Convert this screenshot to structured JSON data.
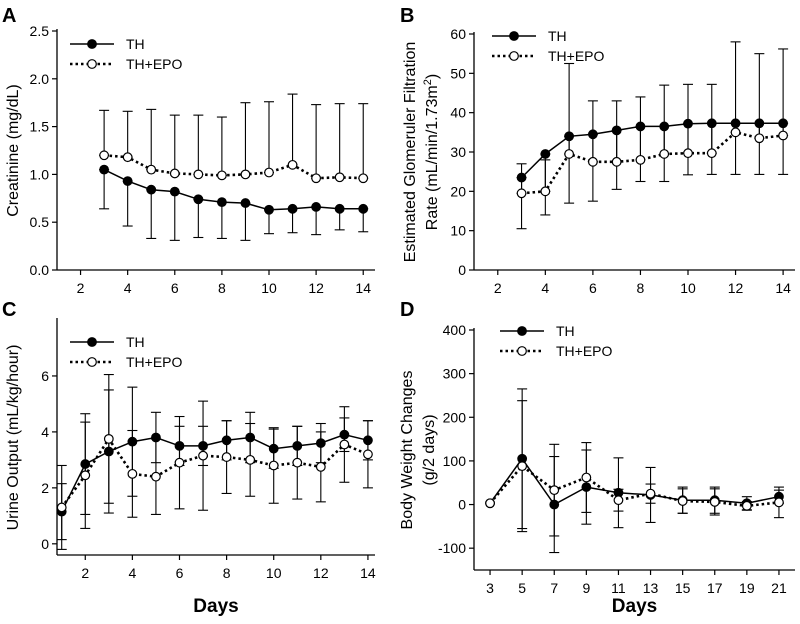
{
  "colors": {
    "ink": "#000000",
    "paper": "#ffffff"
  },
  "chart_data": [
    {
      "panel": "A",
      "type": "line",
      "title": "",
      "xlabel": "",
      "ylabel": "Creatinine (mg/dL)",
      "xlim": [
        1,
        14.5
      ],
      "ylim": [
        0,
        2.5
      ],
      "xticks": [
        "2",
        "4",
        "6",
        "8",
        "10",
        "12",
        "14"
      ],
      "yticks": [
        "0.0",
        "0.5",
        "1.0",
        "1.5",
        "2.0",
        "2.5"
      ],
      "legend_position": "top-left",
      "series": [
        {
          "name": "TH",
          "marker": "filled",
          "line": "solid",
          "x": [
            3,
            4,
            5,
            6,
            7,
            8,
            9,
            10,
            11,
            12,
            13,
            14
          ],
          "y": [
            1.05,
            0.93,
            0.84,
            0.82,
            0.74,
            0.71,
            0.7,
            0.63,
            0.64,
            0.66,
            0.64,
            0.64
          ],
          "err": [
            0.41,
            0.47,
            0.51,
            0.51,
            0.4,
            0.38,
            0.39,
            0.25,
            0.25,
            0.29,
            0.22,
            0.24
          ]
        },
        {
          "name": "TH+EPO",
          "marker": "open",
          "line": "dotted",
          "x": [
            3,
            4,
            5,
            6,
            7,
            8,
            9,
            10,
            11,
            12,
            13,
            14
          ],
          "y": [
            1.2,
            1.18,
            1.05,
            1.01,
            1.0,
            0.99,
            1.0,
            1.02,
            1.1,
            0.96,
            0.97,
            0.96
          ],
          "err": [
            0.47,
            0.48,
            0.63,
            0.61,
            0.62,
            0.61,
            0.75,
            0.74,
            0.74,
            0.77,
            0.77,
            0.78
          ]
        }
      ]
    },
    {
      "panel": "B",
      "type": "line",
      "title": "",
      "xlabel": "",
      "ylabel": "Estimated Glomeruler Filtration",
      "ylabel2": "Rate (mL/min/1.73m",
      "ylabel2_sup": "2",
      "ylabel2_end": ")",
      "xlim": [
        1,
        14.5
      ],
      "ylim": [
        0,
        60
      ],
      "xticks": [
        "2",
        "4",
        "6",
        "8",
        "10",
        "12",
        "14"
      ],
      "yticks": [
        "0",
        "10",
        "20",
        "30",
        "40",
        "50",
        "60"
      ],
      "legend_position": "top-left",
      "series": [
        {
          "name": "TH",
          "marker": "filled",
          "line": "solid",
          "x": [
            3,
            4,
            5,
            6,
            7,
            8,
            9,
            10,
            11,
            12,
            13,
            14
          ],
          "y": [
            23.5,
            29.5,
            34.0,
            34.5,
            35.5,
            36.5,
            36.5,
            37.2,
            37.3,
            37.3,
            37.3,
            37.3
          ],
          "err": [
            13,
            15.5,
            17,
            17,
            15,
            14,
            14,
            13,
            13,
            13,
            13,
            13
          ]
        },
        {
          "name": "TH+EPO",
          "marker": "open",
          "line": "dotted",
          "x": [
            3,
            4,
            5,
            6,
            7,
            8,
            9,
            10,
            11,
            12,
            13,
            14
          ],
          "y": [
            19.5,
            20.0,
            29.5,
            27.5,
            27.5,
            28.0,
            29.5,
            29.7,
            29.7,
            35.0,
            33.5,
            34.2
          ],
          "err": [
            7.5,
            8,
            23,
            15.5,
            15.5,
            16,
            17.5,
            17.5,
            17.5,
            23,
            21.5,
            22
          ]
        }
      ]
    },
    {
      "panel": "C",
      "type": "line",
      "title": "",
      "xlabel": "Days",
      "ylabel": "Urine Output (mL/kg/hour)",
      "xlim": [
        0.8,
        14.3
      ],
      "ylim": [
        -0.4,
        8
      ],
      "xticks": [
        "2",
        "4",
        "6",
        "8",
        "10",
        "12",
        "14"
      ],
      "yticks": [
        "0",
        "2",
        "4",
        "6"
      ],
      "legend_position": "top-left",
      "series": [
        {
          "name": "TH",
          "marker": "filled",
          "line": "solid",
          "x": [
            1,
            2,
            3,
            4,
            5,
            6,
            7,
            8,
            9,
            10,
            11,
            12,
            13,
            14
          ],
          "y": [
            1.15,
            2.85,
            3.3,
            3.65,
            3.8,
            3.5,
            3.5,
            3.7,
            3.8,
            3.4,
            3.5,
            3.6,
            3.9,
            3.7
          ],
          "err": [
            1.0,
            1.8,
            2.2,
            1.95,
            0.9,
            0.7,
            0.7,
            0.7,
            0.9,
            0.7,
            0.7,
            0.7,
            0.6,
            0.7
          ]
        },
        {
          "name": "TH+EPO",
          "marker": "open",
          "line": "dotted",
          "x": [
            1,
            2,
            3,
            4,
            5,
            6,
            7,
            8,
            9,
            10,
            11,
            12,
            13,
            14
          ],
          "y": [
            1.3,
            2.45,
            3.75,
            2.5,
            2.4,
            2.9,
            3.15,
            3.1,
            3.0,
            2.8,
            2.9,
            2.75,
            3.55,
            3.2
          ],
          "err": [
            1.5,
            1.9,
            2.3,
            1.55,
            1.35,
            1.65,
            1.95,
            1.3,
            1.3,
            1.35,
            1.3,
            1.25,
            1.35,
            1.2
          ]
        }
      ]
    },
    {
      "panel": "D",
      "type": "line",
      "title": "",
      "xlabel": "Days",
      "ylabel": "Body Weight Changes",
      "ylabel2": "(g/2 days)",
      "xlim": [
        2,
        22
      ],
      "ylim": [
        -150,
        400
      ],
      "xticks": [
        "3",
        "5",
        "7",
        "9",
        "11",
        "13",
        "15",
        "17",
        "19",
        "21"
      ],
      "yticks": [
        "-100",
        "0",
        "100",
        "200",
        "300",
        "400"
      ],
      "legend_position": "top-left",
      "series": [
        {
          "name": "TH",
          "marker": "filled",
          "line": "solid",
          "x": [
            3,
            5,
            7,
            9,
            11,
            13,
            15,
            17,
            19,
            21
          ],
          "y": [
            3,
            105,
            0,
            40,
            27,
            22,
            10,
            10,
            3,
            18
          ],
          "err": [
            0,
            160,
            110,
            85,
            80,
            63,
            30,
            30,
            15,
            15
          ]
        },
        {
          "name": "TH+EPO",
          "marker": "open",
          "line": "dotted",
          "x": [
            3,
            5,
            7,
            9,
            11,
            13,
            15,
            17,
            19,
            21
          ],
          "y": [
            3,
            88,
            33,
            62,
            10,
            25,
            8,
            6,
            -3,
            5
          ],
          "err": [
            0,
            150,
            105,
            80,
            25,
            22,
            28,
            30,
            10,
            35
          ]
        }
      ]
    }
  ]
}
